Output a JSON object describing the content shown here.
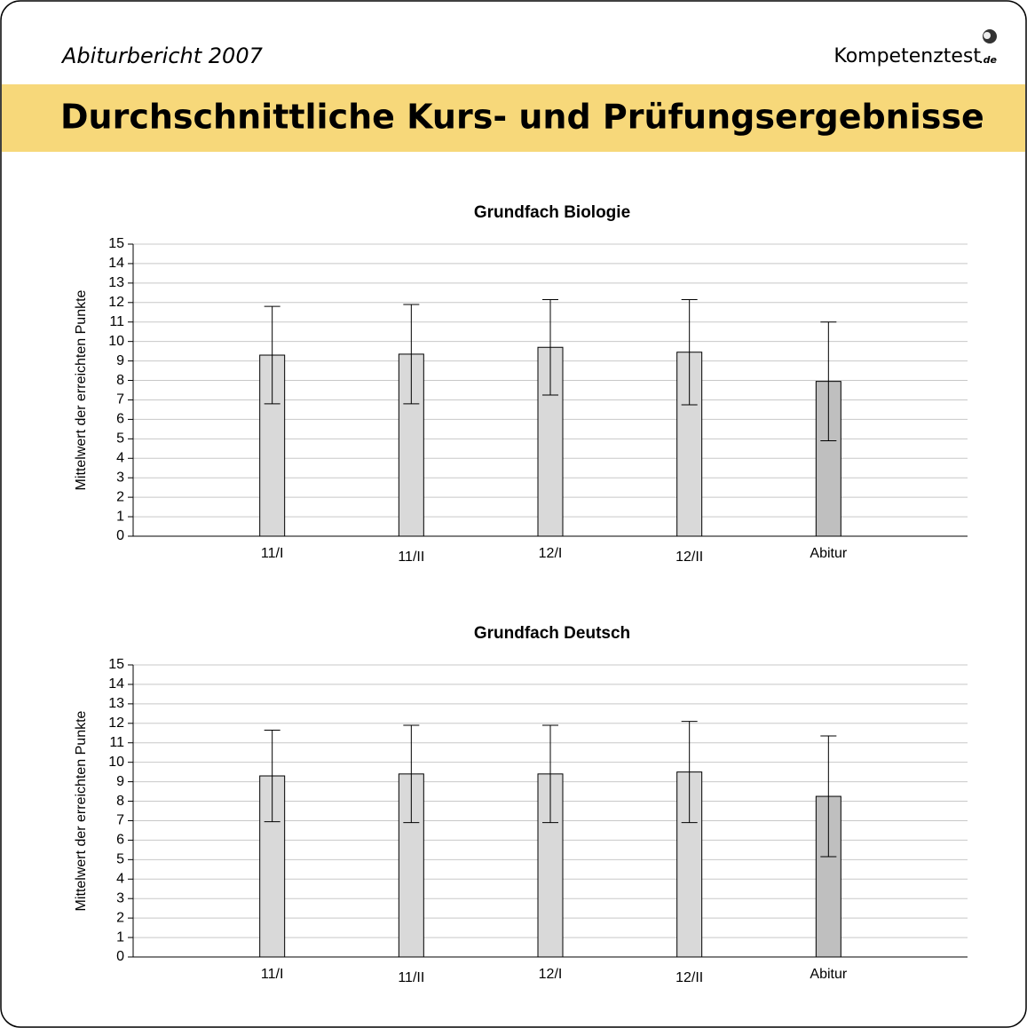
{
  "header": {
    "subtitle": "Abiturbericht 2007",
    "logo": "Kompetenztest",
    "logo_suffix": ".de",
    "title": "Durchschnittliche Kurs- und Prüfungsergebnisse"
  },
  "chart_data": [
    {
      "type": "bar",
      "title": "Grundfach Biologie",
      "y_label": "Mittelwert der erreichten Punkte",
      "categories": [
        "11/I",
        "11/II",
        "12/I",
        "12/II",
        "Abitur"
      ],
      "values": [
        9.3,
        9.35,
        9.7,
        9.45,
        7.95
      ],
      "errors": [
        2.5,
        2.55,
        2.45,
        2.7,
        3.05
      ],
      "colors": [
        "#d9d9d9",
        "#d9d9d9",
        "#d9d9d9",
        "#d9d9d9",
        "#bfbfbf"
      ],
      "ylim": [
        0,
        15
      ],
      "yticks": [
        0,
        1,
        2,
        3,
        4,
        5,
        6,
        7,
        8,
        9,
        10,
        11,
        12,
        13,
        14,
        15
      ],
      "grid": true
    },
    {
      "type": "bar",
      "title": "Grundfach Deutsch",
      "y_label": "Mittelwert der erreichten Punkte",
      "categories": [
        "11/I",
        "11/II",
        "12/I",
        "12/II",
        "Abitur"
      ],
      "values": [
        9.3,
        9.4,
        9.4,
        9.5,
        8.25
      ],
      "errors": [
        2.35,
        2.5,
        2.5,
        2.6,
        3.1
      ],
      "colors": [
        "#d9d9d9",
        "#d9d9d9",
        "#d9d9d9",
        "#d9d9d9",
        "#bfbfbf"
      ],
      "ylim": [
        0,
        15
      ],
      "yticks": [
        0,
        1,
        2,
        3,
        4,
        5,
        6,
        7,
        8,
        9,
        10,
        11,
        12,
        13,
        14,
        15
      ],
      "grid": true
    }
  ]
}
